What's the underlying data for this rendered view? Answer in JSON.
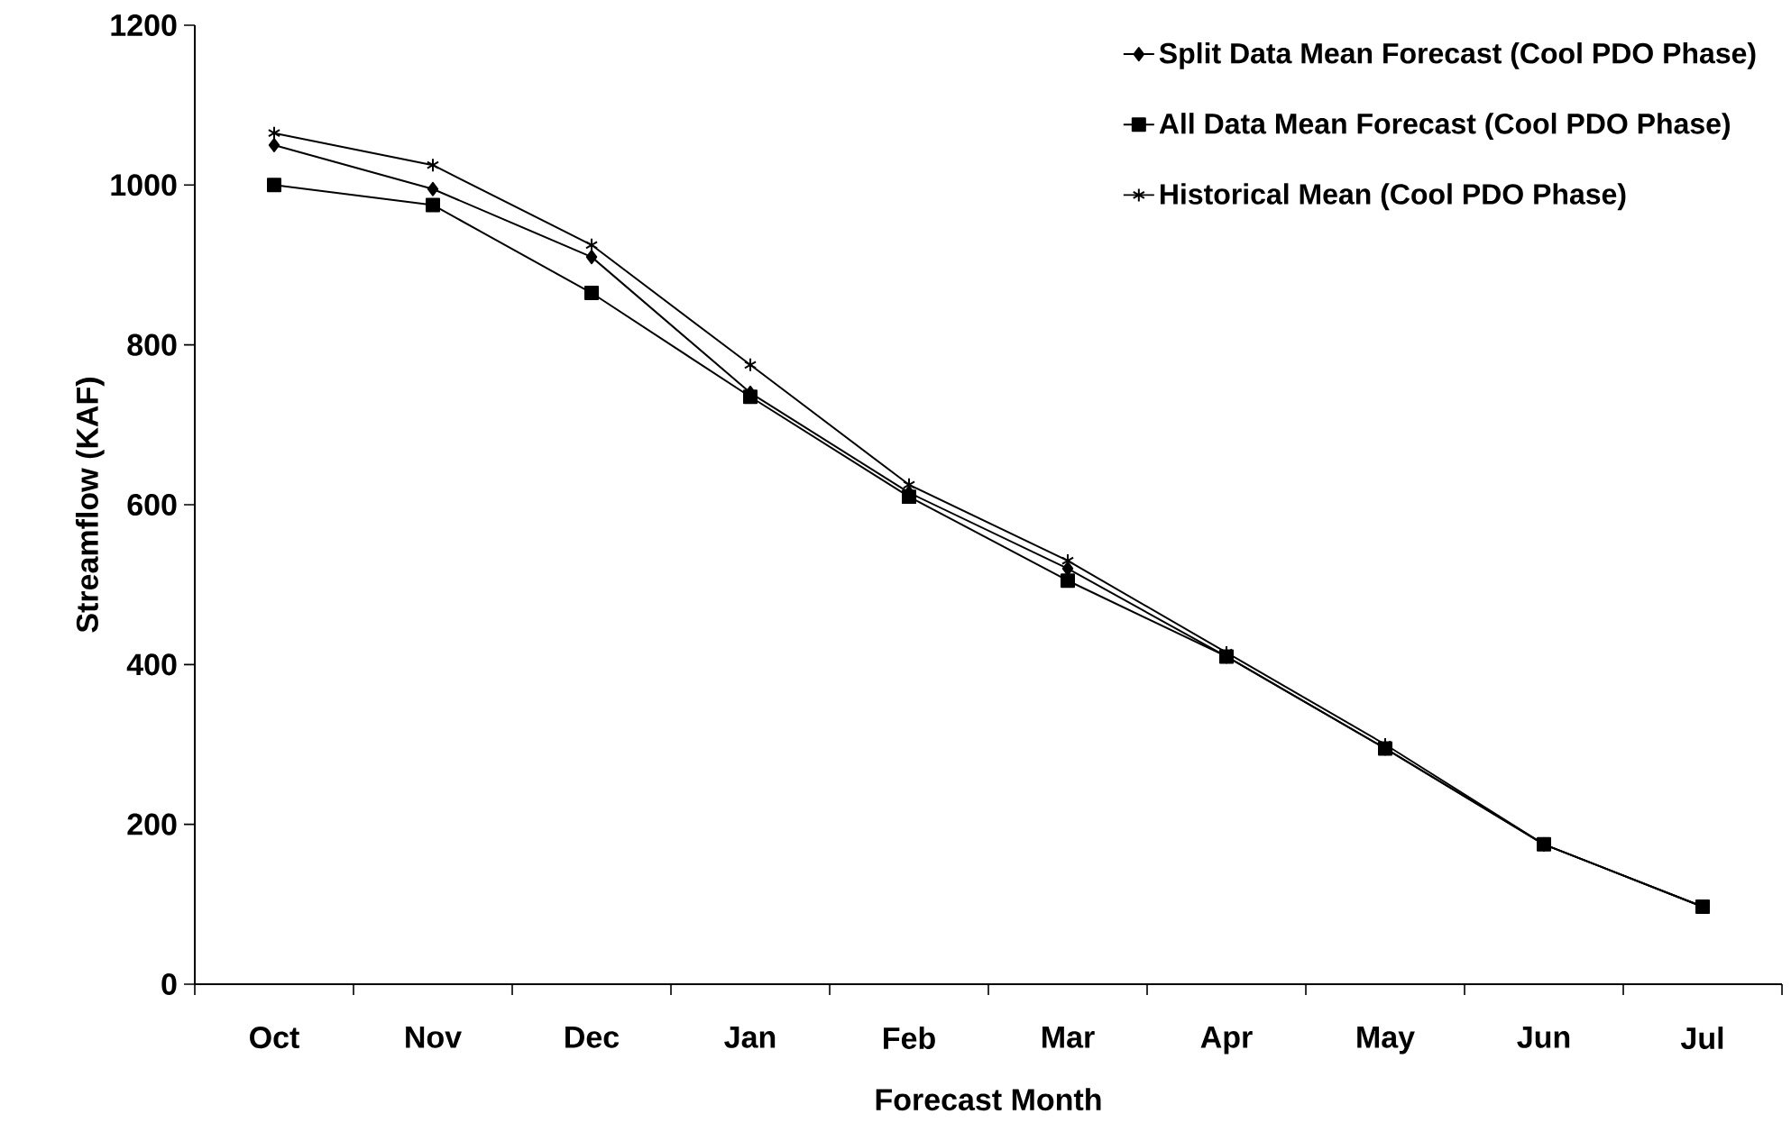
{
  "chart_data": {
    "type": "line",
    "xlabel": "Forecast Month",
    "ylabel": "Streamflow (KAF)",
    "categories": [
      "Oct",
      "Nov",
      "Dec",
      "Jan",
      "Feb",
      "Mar",
      "Apr",
      "May",
      "Jun",
      "Jul"
    ],
    "series": [
      {
        "name": "Split Data Mean Forecast (Cool PDO Phase)",
        "color": "#000000",
        "marker": "diamond",
        "values": [
          1050,
          995,
          910,
          740,
          615,
          520,
          410,
          295,
          175,
          97
        ]
      },
      {
        "name": "All Data Mean Forecast (Cool PDO Phase)",
        "color": "#000000",
        "marker": "square",
        "values": [
          1000,
          975,
          865,
          735,
          610,
          505,
          410,
          295,
          175,
          97
        ]
      },
      {
        "name": "Historical Mean (Cool PDO Phase)",
        "color": "#000000",
        "marker": "cross",
        "values": [
          1065,
          1025,
          925,
          775,
          625,
          530,
          415,
          300,
          175,
          97
        ]
      }
    ],
    "ylim": [
      0,
      1200
    ],
    "yticks": [
      0,
      200,
      400,
      600,
      800,
      1000,
      1200
    ],
    "grid": false,
    "legend": "top right",
    "line_style": "solid"
  }
}
